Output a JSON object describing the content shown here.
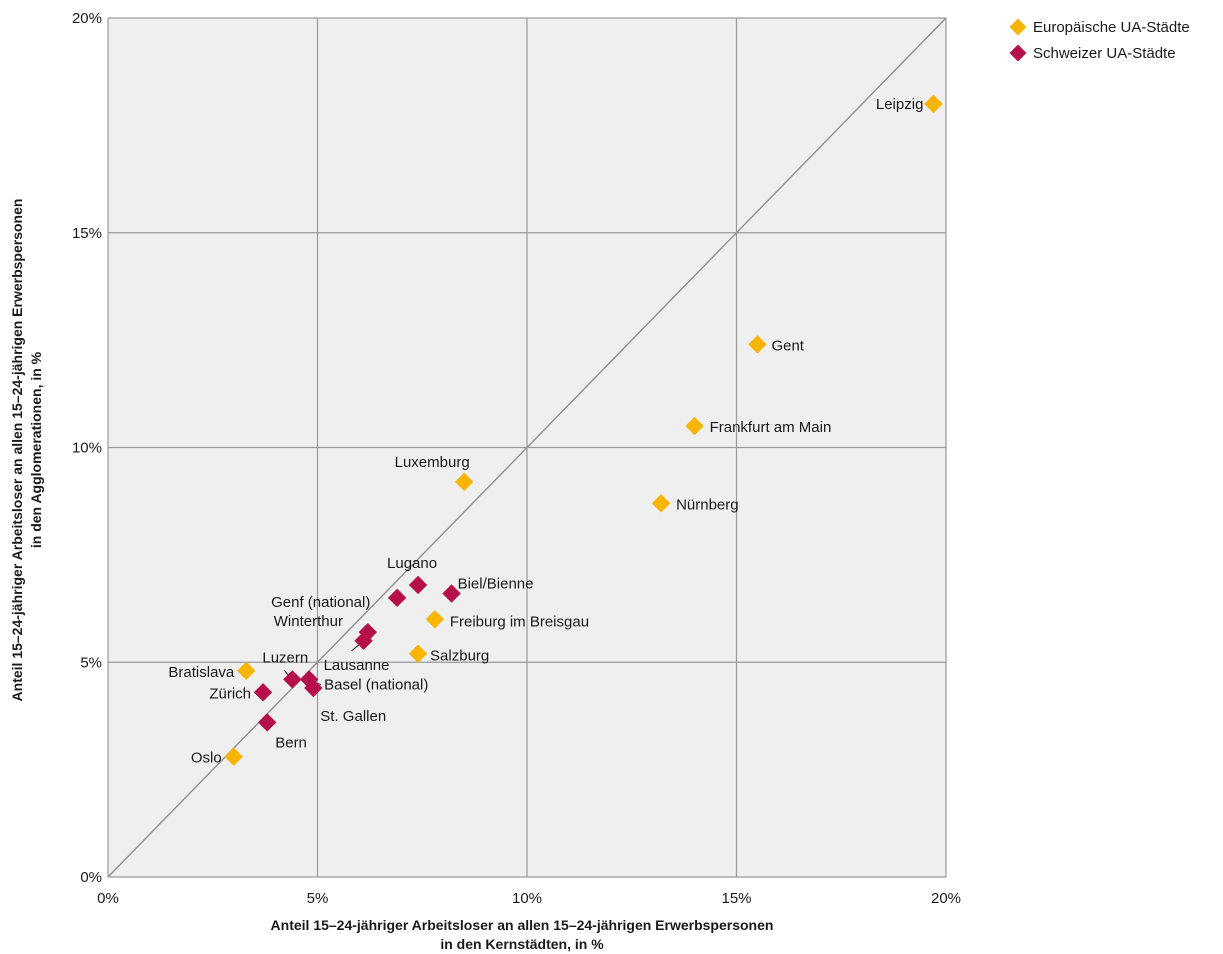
{
  "chart_data": {
    "type": "scatter",
    "title": "",
    "xlabel": [
      "Anteil 15–24-jähriger Arbeitsloser an allen 15–24-jährigen Erwerbspersonen",
      "in den Kernstädten, in %"
    ],
    "ylabel": [
      "Anteil 15–24-jähriger Arbeitsloser an allen 15–24-jährigen Erwerbspersonen",
      "in den Agglomerationen, in %"
    ],
    "xlim": [
      0,
      20
    ],
    "ylim": [
      0,
      20
    ],
    "xticks": [
      0,
      5,
      10,
      15,
      20
    ],
    "yticks": [
      0,
      5,
      10,
      15,
      20
    ],
    "tick_format": "%",
    "grid": true,
    "reference_line": "diagonal y = x",
    "legend_position": "top-right outside",
    "series": [
      {
        "name": "Europäische UA-Städte",
        "color": "#f7b500",
        "marker": "diamond",
        "points": [
          {
            "label": "Leipzig",
            "x": 19.7,
            "y": 18.0
          },
          {
            "label": "Gent",
            "x": 15.5,
            "y": 12.4
          },
          {
            "label": "Frankfurt am Main",
            "x": 14.0,
            "y": 10.5
          },
          {
            "label": "Nürnberg",
            "x": 13.2,
            "y": 8.7
          },
          {
            "label": "Luxemburg",
            "x": 8.5,
            "y": 9.2
          },
          {
            "label": "Freiburg im Breisgau",
            "x": 7.8,
            "y": 6.0
          },
          {
            "label": "Salzburg",
            "x": 7.4,
            "y": 5.2
          },
          {
            "label": "Bratislava",
            "x": 3.3,
            "y": 4.8
          },
          {
            "label": "Oslo",
            "x": 3.0,
            "y": 2.8
          }
        ]
      },
      {
        "name": "Schweizer UA-Städte",
        "color": "#b5104a",
        "marker": "diamond",
        "points": [
          {
            "label": "Lugano",
            "x": 7.4,
            "y": 6.8
          },
          {
            "label": "Biel/Bienne",
            "x": 8.2,
            "y": 6.6
          },
          {
            "label": "Genf (national)",
            "x": 6.9,
            "y": 6.5
          },
          {
            "label": "Winterthur",
            "x": 6.2,
            "y": 5.7
          },
          {
            "label": "Lausanne",
            "x": 6.1,
            "y": 5.5
          },
          {
            "label": "Luzern",
            "x": 4.4,
            "y": 4.6
          },
          {
            "label": "Basel (national)",
            "x": 4.8,
            "y": 4.6
          },
          {
            "label": "St. Gallen",
            "x": 4.9,
            "y": 4.4
          },
          {
            "label": "Zürich",
            "x": 3.7,
            "y": 4.3
          },
          {
            "label": "Bern",
            "x": 3.8,
            "y": 3.6
          }
        ]
      }
    ]
  }
}
